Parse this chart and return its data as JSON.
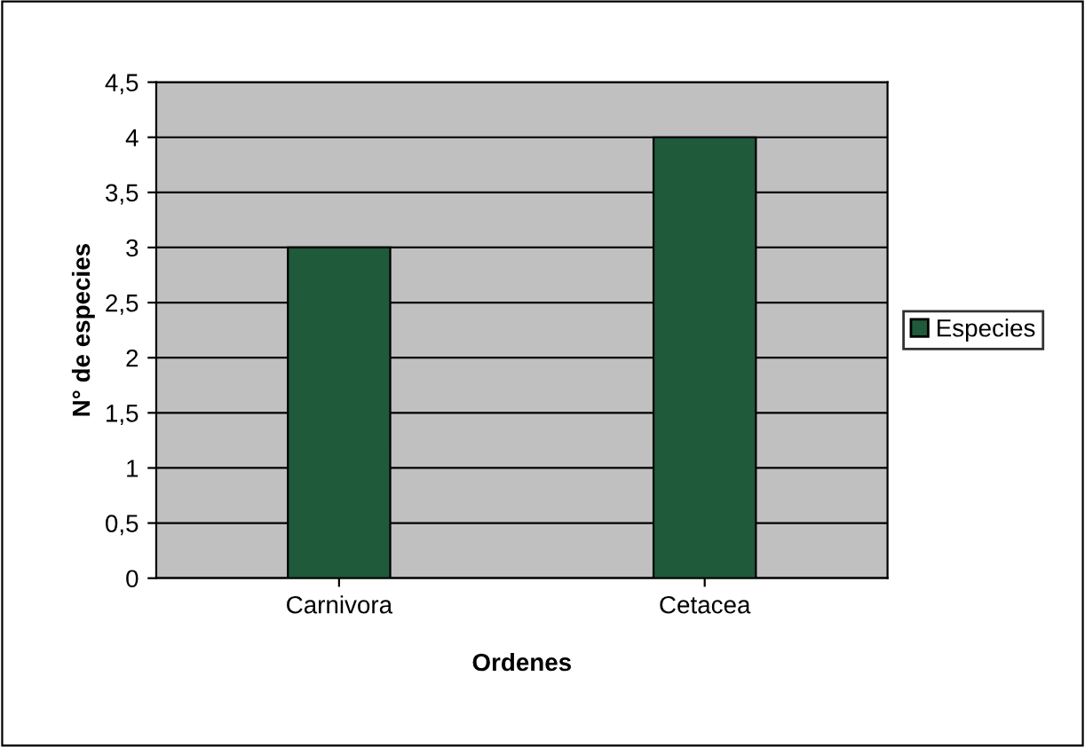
{
  "chart_data": {
    "type": "bar",
    "xlabel": "Ordenes",
    "ylabel": "N° de especies",
    "categories": [
      "Carnivora",
      "Cetacea"
    ],
    "series": [
      {
        "name": "Especies",
        "color": "#1f5a3a",
        "values": [
          3,
          4
        ]
      }
    ],
    "ylim": [
      0,
      4.5
    ],
    "yticks": [
      0,
      {
        "value": 0.5,
        "label": "0,5"
      },
      1,
      {
        "value": 1.5,
        "label": "1,5"
      },
      2,
      {
        "value": 2.5,
        "label": "2,5"
      },
      3,
      {
        "value": 3.5,
        "label": "3,5"
      },
      4,
      {
        "value": 4.5,
        "label": "4,5"
      }
    ],
    "grid": "y",
    "legend": "right"
  }
}
